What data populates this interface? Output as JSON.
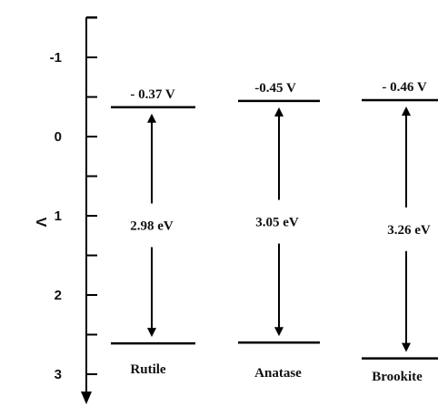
{
  "axis": {
    "label": "V",
    "ticks": [
      {
        "value": -1,
        "label": "-1"
      },
      {
        "value": 0,
        "label": "0"
      },
      {
        "value": 1,
        "label": "1"
      },
      {
        "value": 2,
        "label": "2"
      },
      {
        "value": 3,
        "label": "3"
      }
    ],
    "minor_ticks": [
      -1.5,
      -0.5,
      0.5,
      1.5,
      2.5
    ]
  },
  "phases": [
    {
      "name": "Rutile",
      "cb_label": "- 0.37 V",
      "cb_value": -0.37,
      "gap_label": "2.98 eV",
      "gap_value": 2.98,
      "vb_value": 2.61
    },
    {
      "name": "Anatase",
      "cb_label": "-0.45 V",
      "cb_value": -0.45,
      "gap_label": "3.05 eV",
      "gap_value": 3.05,
      "vb_value": 2.6
    },
    {
      "name": "Brookite",
      "cb_label": "- 0.46 V",
      "cb_value": -0.46,
      "gap_label": "3.26 eV",
      "gap_value": 3.26,
      "vb_value": 2.8
    }
  ]
}
